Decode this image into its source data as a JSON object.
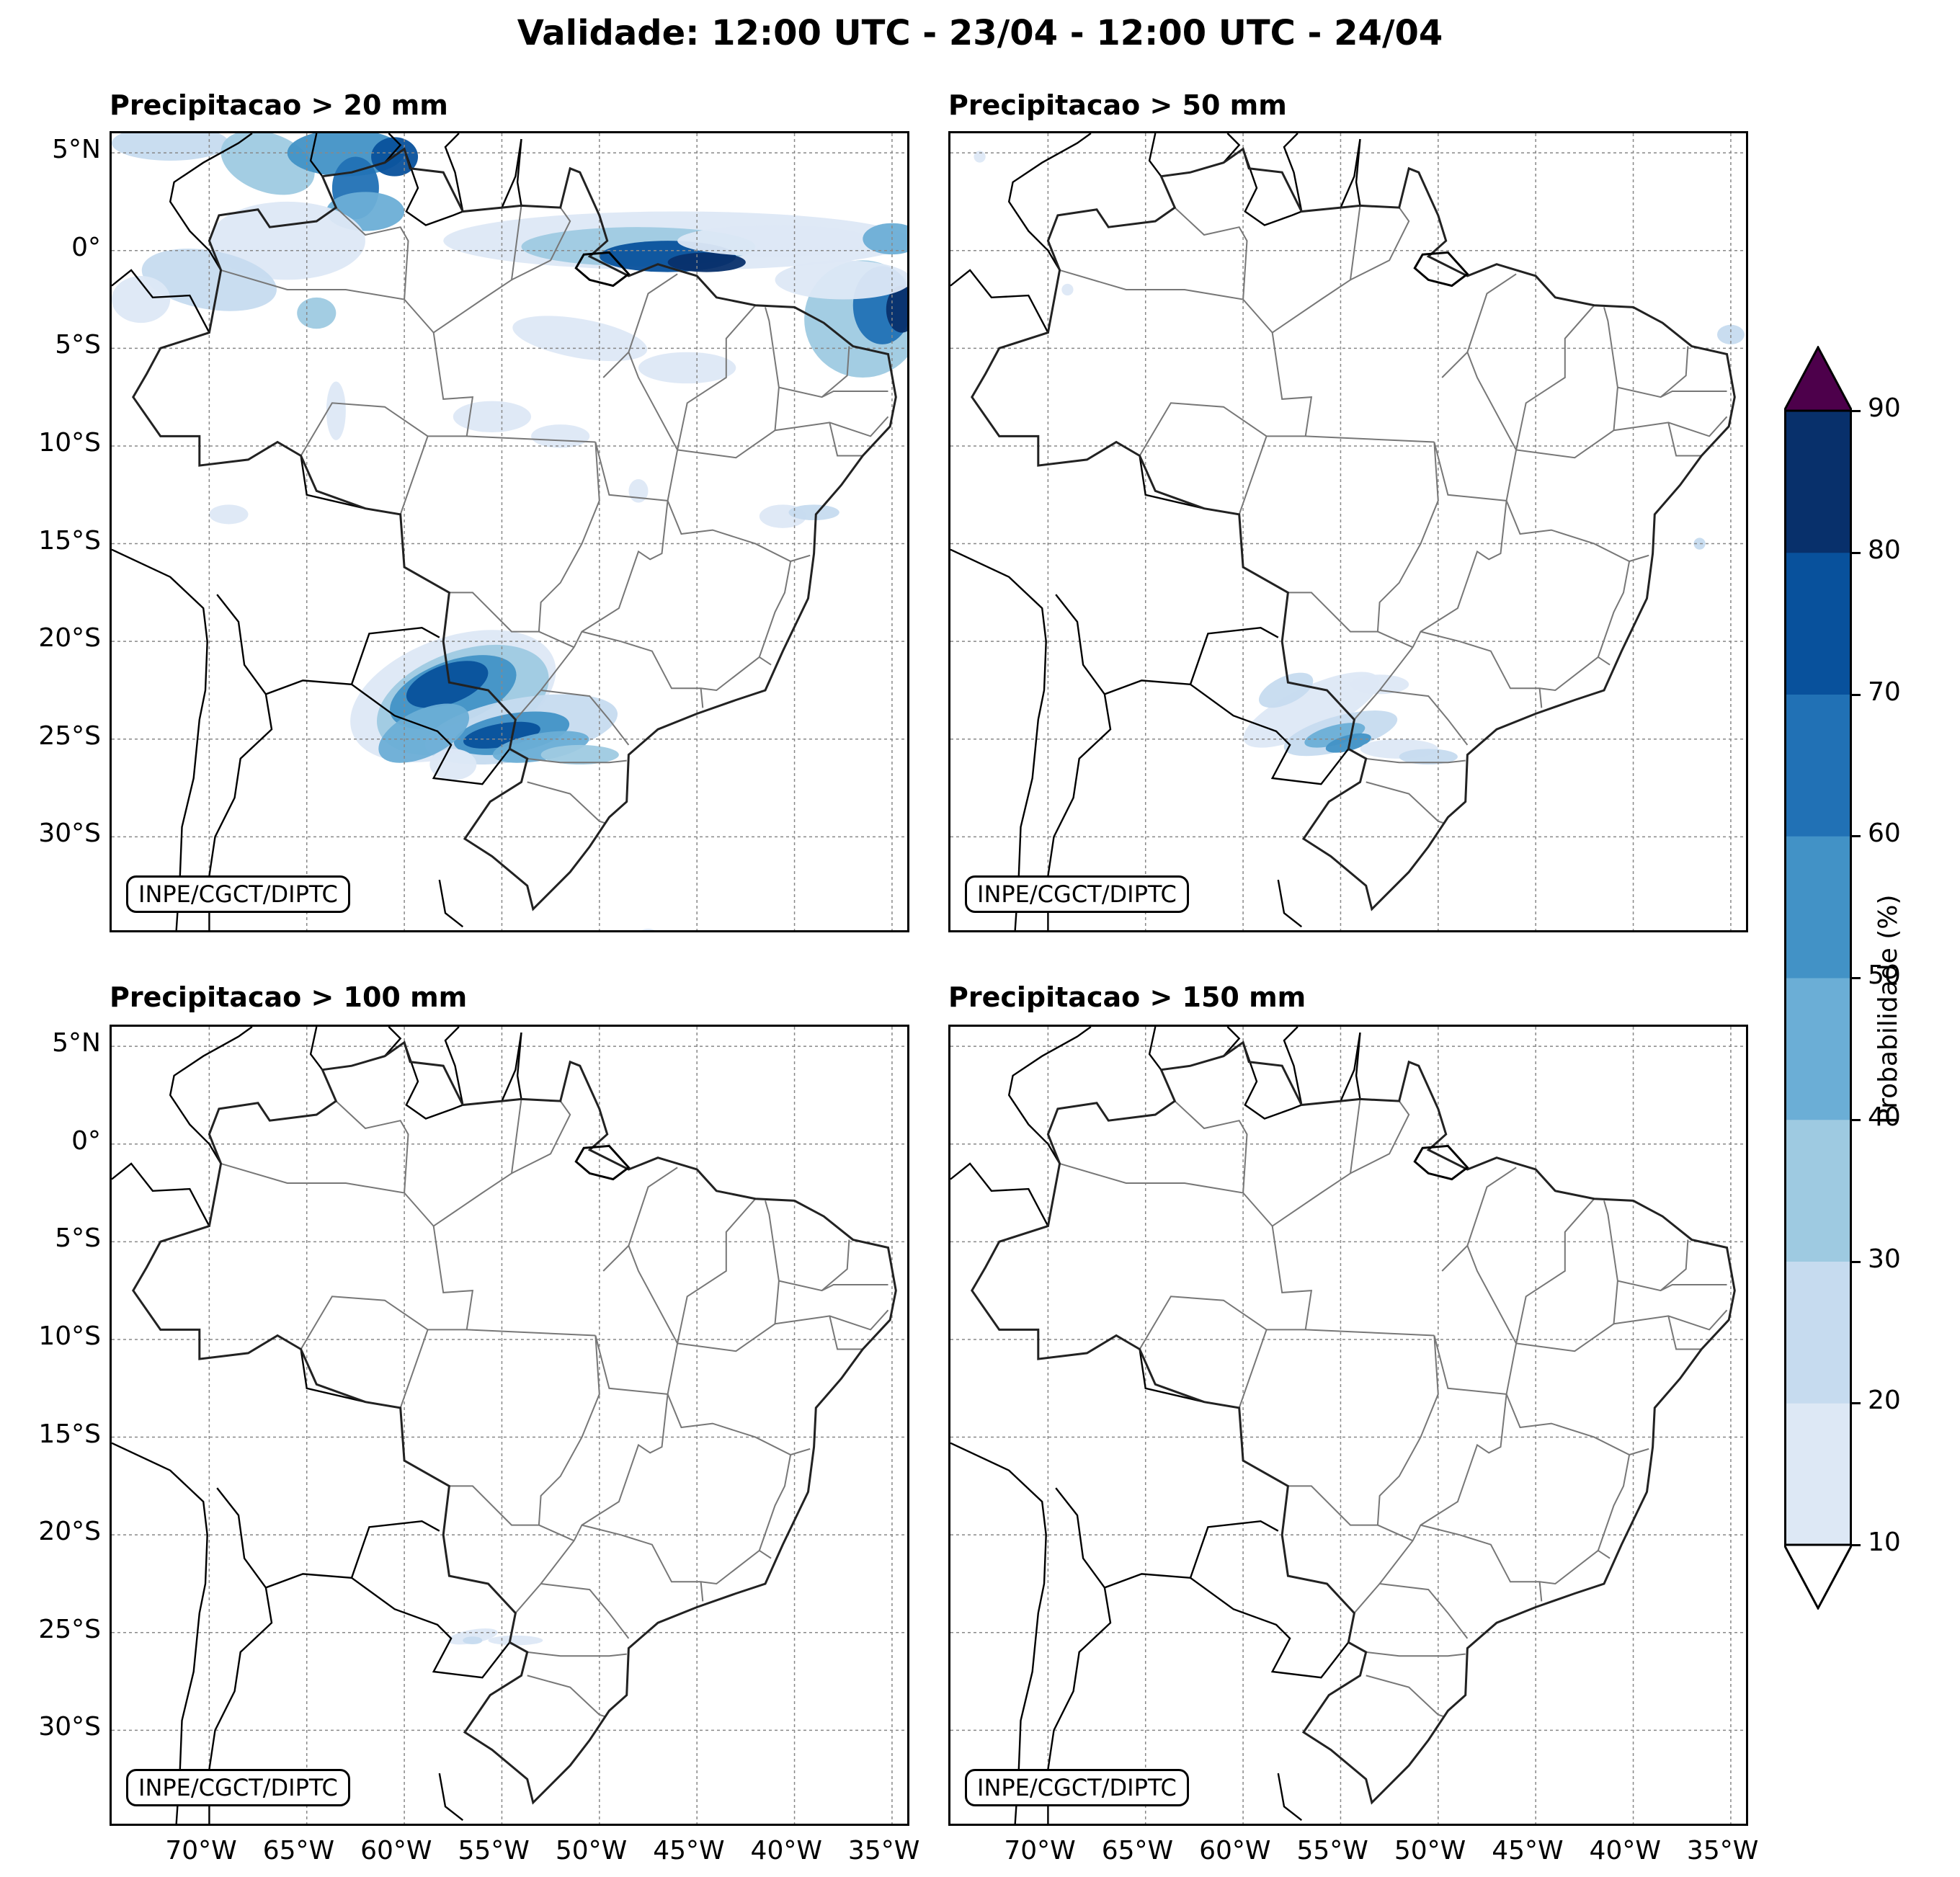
{
  "title": "Validade: 12:00 UTC - 23/04 - 12:00 UTC - 24/04",
  "credit": "INPE/CGCT/DIPTC",
  "panels": [
    {
      "title": "Precipitacao > 20 mm"
    },
    {
      "title": "Precipitacao > 50 mm"
    },
    {
      "title": "Precipitacao > 100 mm"
    },
    {
      "title": "Precipitacao > 150 mm"
    }
  ],
  "lat_ticks": [
    "5°N",
    "0°",
    "5°S",
    "10°S",
    "15°S",
    "20°S",
    "25°S",
    "30°S"
  ],
  "lon_ticks": [
    "70°W",
    "65°W",
    "60°W",
    "55°W",
    "50°W",
    "45°W",
    "40°W",
    "35°W"
  ],
  "colorbar": {
    "label": "Probabilidade (%)",
    "ticks": [
      "10",
      "20",
      "30",
      "40",
      "50",
      "60",
      "70",
      "80",
      "90"
    ],
    "colors": [
      "#dde8f5",
      "#c6dbef",
      "#9ecae1",
      "#6baed6",
      "#4292c6",
      "#2171b5",
      "#08519c",
      "#08306b"
    ],
    "over_color": "#4d004b",
    "under_color": "#ffffff"
  }
}
